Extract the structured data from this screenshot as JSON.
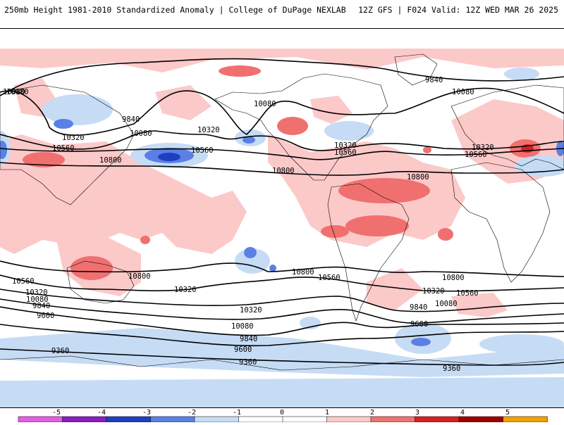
{
  "header": {
    "title_left": "250mb Height 1981-2010 Standardized Anomaly | College of DuPage NEXLAB",
    "title_right": "12Z GFS | F024 Valid: 12Z WED MAR 26 2025"
  },
  "colors": {
    "anom_m5": "#e65ce6",
    "anom_m4": "#8a1fbf",
    "anom_m3": "#1f3fbf",
    "anom_m2": "#5a80e6",
    "anom_m1": "#c6dcf5",
    "anom_0": "#ffffff",
    "anom_p1": "#fcc9c9",
    "anom_p2": "#f07070",
    "anom_p3": "#d62020",
    "anom_p4": "#a00000",
    "anom_p5": "#f0a000",
    "contour": "#000000",
    "coast": "#000000"
  },
  "colorbar": {
    "ticks": [
      "-5",
      "-4",
      "-3",
      "-2",
      "-1",
      "0",
      "1",
      "2",
      "3",
      "4",
      "5"
    ]
  },
  "contours": {
    "labels": [
      "10080",
      "9840",
      "10320",
      "10080",
      "10560",
      "10800",
      "10320",
      "10560",
      "10080",
      "10800",
      "10320",
      "10560",
      "9840",
      "10080",
      "10320",
      "10560",
      "10800",
      "10800",
      "10800",
      "10560",
      "10800",
      "10560",
      "10320",
      "10080",
      "9840",
      "9600",
      "10560",
      "10320",
      "10080",
      "9840",
      "9600",
      "9360",
      "10320",
      "10080",
      "9840",
      "9600",
      "9360",
      "9360",
      "10080",
      "10320"
    ]
  }
}
